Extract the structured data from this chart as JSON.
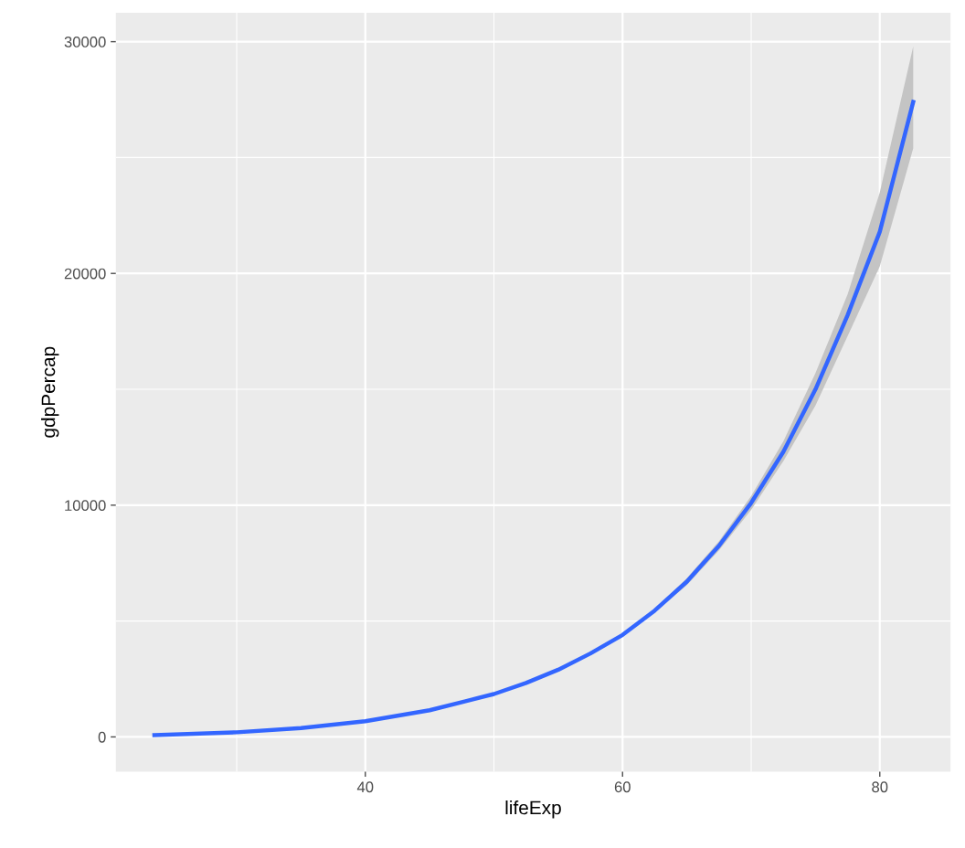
{
  "chart_data": {
    "type": "line",
    "xlabel": "lifeExp",
    "ylabel": "gdpPercap",
    "xlim": [
      20.6,
      85.5
    ],
    "ylim": [
      -1500,
      31250
    ],
    "xticks": [
      40,
      60,
      80
    ],
    "yticks": [
      0,
      10000,
      20000,
      30000
    ],
    "grid": true,
    "series": [
      {
        "color": "#3366ff",
        "x": [
          23.6,
          30,
          35,
          40,
          45,
          50,
          52.5,
          55,
          57.5,
          60,
          62.5,
          65,
          67.5,
          70,
          72.5,
          75,
          77.5,
          80,
          82.6
        ],
        "values": [
          80,
          200,
          380,
          680,
          1150,
          1850,
          2330,
          2900,
          3600,
          4400,
          5450,
          6700,
          8250,
          10100,
          12300,
          15000,
          18200,
          21800,
          27400
        ],
        "lower": [
          30,
          150,
          340,
          640,
          1110,
          1800,
          2280,
          2840,
          3530,
          4330,
          5370,
          6550,
          8050,
          9800,
          11900,
          14300,
          17300,
          20300,
          25400
        ],
        "upper": [
          130,
          250,
          420,
          720,
          1190,
          1900,
          2380,
          2960,
          3670,
          4470,
          5530,
          6850,
          8450,
          10400,
          12750,
          15700,
          19100,
          23500,
          29800
        ]
      }
    ]
  }
}
